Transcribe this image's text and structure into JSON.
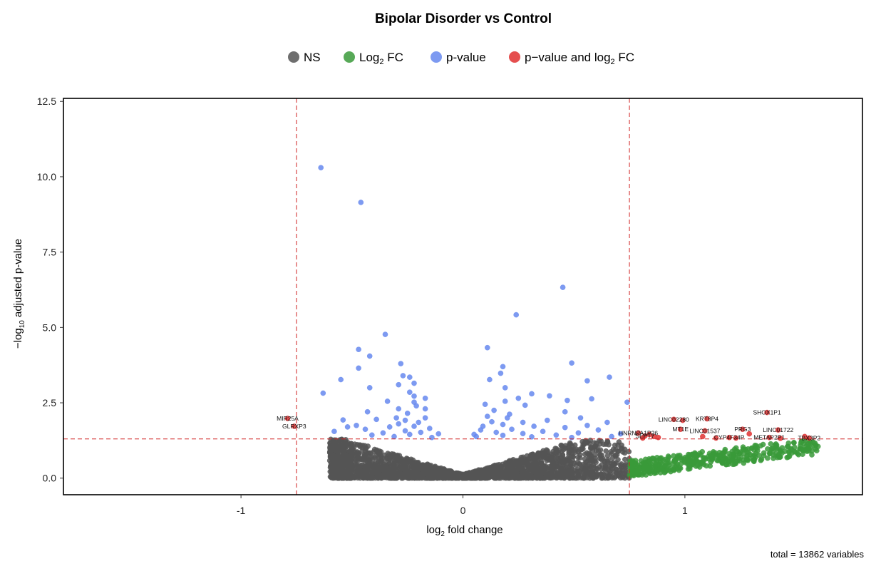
{
  "chart_data": {
    "type": "scatter",
    "title": "Bipolar Disorder vs Control",
    "xlabel": "log2 fold change",
    "ylabel": "−log10 adjusted p-value",
    "xlim": [
      -1.8,
      1.8
    ],
    "ylim": [
      -0.55,
      12.6
    ],
    "x_ticks": [
      -1,
      0,
      1
    ],
    "x_tick_labels": [
      "-1",
      "0",
      "1"
    ],
    "y_ticks": [
      0,
      2.5,
      5,
      7.5,
      10,
      12.5
    ],
    "y_tick_labels": [
      "0.0",
      "2.5",
      "5.0",
      "7.5",
      "10.0",
      "12.5"
    ],
    "grid": false,
    "legend_position": "top",
    "thresholds": {
      "fc_cutoff": 0.75,
      "p_cutoff": 1.3
    },
    "legend": [
      {
        "key": "ns",
        "label": "NS",
        "color": "#555555"
      },
      {
        "key": "fc",
        "label": "Log",
        "sub": "2",
        "suffix": " FC",
        "color": "#3a9a3a"
      },
      {
        "key": "p",
        "label": "p-value",
        "color": "#6688ee"
      },
      {
        "key": "both",
        "label": "p−value and log",
        "sub": "2",
        "suffix": " FC",
        "color": "#e03030"
      }
    ],
    "caption": "total = 13862 variables",
    "series_points": {
      "p": [
        [
          -0.64,
          10.3
        ],
        [
          -0.46,
          9.15
        ],
        [
          0.45,
          6.33
        ],
        [
          0.24,
          5.42
        ],
        [
          -0.35,
          4.77
        ],
        [
          0.11,
          4.33
        ],
        [
          -0.47,
          4.27
        ],
        [
          -0.42,
          4.05
        ],
        [
          0.49,
          3.82
        ],
        [
          -0.28,
          3.8
        ],
        [
          -0.47,
          3.65
        ],
        [
          0.18,
          3.7
        ],
        [
          -0.27,
          3.4
        ],
        [
          0.17,
          3.48
        ],
        [
          -0.24,
          3.35
        ],
        [
          0.66,
          3.35
        ],
        [
          0.56,
          3.23
        ],
        [
          0.12,
          3.27
        ],
        [
          -0.55,
          3.27
        ],
        [
          -0.29,
          3.1
        ],
        [
          -0.22,
          3.15
        ],
        [
          0.19,
          3.0
        ],
        [
          -0.42,
          3.0
        ],
        [
          -0.24,
          2.85
        ],
        [
          -0.63,
          2.82
        ],
        [
          0.31,
          2.8
        ],
        [
          -0.22,
          2.72
        ],
        [
          0.25,
          2.65
        ],
        [
          0.39,
          2.73
        ],
        [
          0.58,
          2.63
        ],
        [
          -0.17,
          2.65
        ],
        [
          0.47,
          2.58
        ],
        [
          -0.34,
          2.55
        ],
        [
          0.19,
          2.55
        ],
        [
          -0.22,
          2.52
        ],
        [
          0.1,
          2.45
        ],
        [
          0.74,
          2.52
        ],
        [
          -0.21,
          2.4
        ],
        [
          0.28,
          2.42
        ],
        [
          -0.29,
          2.3
        ],
        [
          -0.17,
          2.3
        ],
        [
          0.14,
          2.25
        ],
        [
          -0.43,
          2.2
        ],
        [
          0.46,
          2.2
        ],
        [
          -0.25,
          2.15
        ],
        [
          0.21,
          2.12
        ],
        [
          0.11,
          2.05
        ],
        [
          -0.3,
          2.0
        ],
        [
          -0.17,
          2.0
        ],
        [
          0.53,
          2.0
        ],
        [
          0.2,
          2.0
        ],
        [
          -0.39,
          1.95
        ],
        [
          -0.26,
          1.92
        ],
        [
          0.38,
          1.92
        ],
        [
          -0.54,
          1.93
        ],
        [
          0.13,
          1.87
        ],
        [
          0.65,
          1.85
        ],
        [
          -0.2,
          1.85
        ],
        [
          0.27,
          1.85
        ],
        [
          -0.29,
          1.8
        ],
        [
          0.18,
          1.78
        ],
        [
          -0.48,
          1.75
        ],
        [
          0.56,
          1.75
        ],
        [
          -0.22,
          1.72
        ],
        [
          0.09,
          1.72
        ],
        [
          0.32,
          1.72
        ],
        [
          -0.52,
          1.7
        ],
        [
          0.46,
          1.68
        ],
        [
          -0.33,
          1.7
        ],
        [
          -0.15,
          1.65
        ],
        [
          0.22,
          1.62
        ],
        [
          -0.44,
          1.62
        ],
        [
          0.08,
          1.6
        ],
        [
          0.61,
          1.6
        ],
        [
          -0.58,
          1.55
        ],
        [
          -0.26,
          1.57
        ],
        [
          0.36,
          1.55
        ],
        [
          -0.19,
          1.52
        ],
        [
          0.15,
          1.52
        ],
        [
          0.52,
          1.5
        ],
        [
          -0.36,
          1.5
        ],
        [
          0.27,
          1.48
        ],
        [
          -0.11,
          1.47
        ],
        [
          0.71,
          1.47
        ],
        [
          0.05,
          1.45
        ],
        [
          -0.24,
          1.45
        ],
        [
          0.42,
          1.43
        ],
        [
          -0.41,
          1.43
        ],
        [
          0.18,
          1.42
        ],
        [
          0.67,
          1.38
        ],
        [
          -0.31,
          1.38
        ],
        [
          0.31,
          1.37
        ],
        [
          0.06,
          1.38
        ],
        [
          -0.14,
          1.35
        ],
        [
          0.49,
          1.35
        ]
      ],
      "both": [
        [
          -0.79,
          1.98
        ],
        [
          -0.76,
          1.72
        ],
        [
          0.95,
          1.95
        ],
        [
          0.99,
          1.92
        ],
        [
          1.1,
          1.97
        ],
        [
          1.37,
          2.18
        ],
        [
          0.98,
          1.62
        ],
        [
          1.09,
          1.57
        ],
        [
          1.26,
          1.62
        ],
        [
          1.42,
          1.6
        ],
        [
          1.29,
          1.47
        ],
        [
          1.54,
          1.38
        ],
        [
          1.56,
          1.33
        ],
        [
          0.79,
          1.5
        ],
        [
          0.84,
          1.45
        ],
        [
          0.82,
          1.4
        ],
        [
          0.86,
          1.38
        ],
        [
          0.81,
          1.33
        ],
        [
          0.88,
          1.35
        ],
        [
          1.08,
          1.38
        ],
        [
          1.14,
          1.33
        ],
        [
          1.2,
          1.35
        ],
        [
          1.23,
          1.33
        ],
        [
          1.38,
          1.35
        ],
        [
          1.43,
          1.32
        ]
      ]
    },
    "gene_labels": [
      {
        "text": "MIR25A",
        "x": -0.79,
        "y": 1.98
      },
      {
        "text": "GLRXP3",
        "x": -0.76,
        "y": 1.72
      },
      {
        "text": "LINC02280",
        "x": 0.95,
        "y": 1.95
      },
      {
        "text": "KRT8P4",
        "x": 1.1,
        "y": 1.97
      },
      {
        "text": "SHOX1P1",
        "x": 1.37,
        "y": 2.18
      },
      {
        "text": "MT1E",
        "x": 0.98,
        "y": 1.62
      },
      {
        "text": "LINC01537",
        "x": 1.09,
        "y": 1.57
      },
      {
        "text": "PRG3",
        "x": 1.26,
        "y": 1.62
      },
      {
        "text": "LINC01722",
        "x": 1.42,
        "y": 1.6
      },
      {
        "text": "HNRNPA1P26",
        "x": 0.79,
        "y": 1.5
      },
      {
        "text": "CYP4F34P",
        "x": 1.2,
        "y": 1.35
      },
      {
        "text": "METAP2P1",
        "x": 1.38,
        "y": 1.35
      },
      {
        "text": "TBX3P2",
        "x": 1.56,
        "y": 1.33
      },
      {
        "text": "SEPT7",
        "x": 0.82,
        "y": 1.4
      }
    ]
  }
}
